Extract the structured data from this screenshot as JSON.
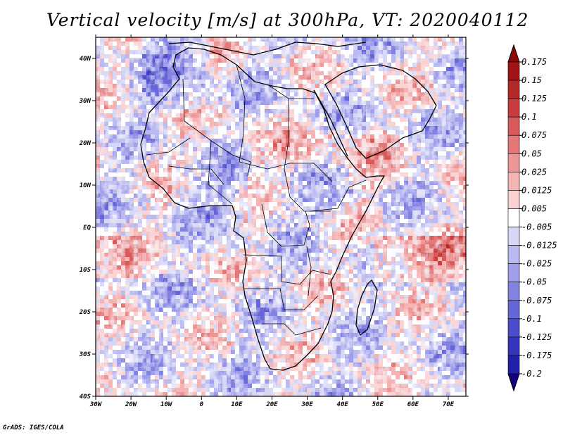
{
  "chart_data": {
    "type": "heatmap",
    "title": "Vertical velocity [m/s] at 300hPa, VT: 2020040112",
    "xlabel": "",
    "ylabel": "",
    "xlim": [
      -30,
      75
    ],
    "ylim": [
      -40,
      45
    ],
    "x_ticks": [
      {
        "value": -30,
        "label": "30W"
      },
      {
        "value": -20,
        "label": "20W"
      },
      {
        "value": -10,
        "label": "10W"
      },
      {
        "value": 0,
        "label": "0"
      },
      {
        "value": 10,
        "label": "10E"
      },
      {
        "value": 20,
        "label": "20E"
      },
      {
        "value": 30,
        "label": "30E"
      },
      {
        "value": 40,
        "label": "40E"
      },
      {
        "value": 50,
        "label": "50E"
      },
      {
        "value": 60,
        "label": "60E"
      },
      {
        "value": 70,
        "label": "70E"
      }
    ],
    "y_ticks": [
      {
        "value": -40,
        "label": "40S"
      },
      {
        "value": -30,
        "label": "30S"
      },
      {
        "value": -20,
        "label": "20S"
      },
      {
        "value": -10,
        "label": "10S"
      },
      {
        "value": 0,
        "label": "EQ"
      },
      {
        "value": 10,
        "label": "10N"
      },
      {
        "value": 20,
        "label": "20N"
      },
      {
        "value": 30,
        "label": "30N"
      },
      {
        "value": 40,
        "label": "40N"
      }
    ],
    "colorbar": {
      "levels": [
        {
          "label": "0.175",
          "color": "#a01414"
        },
        {
          "label": "0.15",
          "color": "#b42828"
        },
        {
          "label": "0.125",
          "color": "#c83c3c"
        },
        {
          "label": "0.1",
          "color": "#d85a5a"
        },
        {
          "label": "0.075",
          "color": "#e47878"
        },
        {
          "label": "0.05",
          "color": "#ee9696"
        },
        {
          "label": "0.025",
          "color": "#f5b4b4"
        },
        {
          "label": "0.0125",
          "color": "#fad2d2"
        },
        {
          "label": "0.005",
          "color": "#ffffff"
        },
        {
          "label": "-0.005",
          "color": "#d6d6f5"
        },
        {
          "label": "-0.0125",
          "color": "#babaf0"
        },
        {
          "label": "-0.025",
          "color": "#9e9eea"
        },
        {
          "label": "-0.05",
          "color": "#8282e2"
        },
        {
          "label": "-0.075",
          "color": "#6666d8"
        },
        {
          "label": "-0.1",
          "color": "#4c4ccc"
        },
        {
          "label": "-0.125",
          "color": "#3434bc"
        },
        {
          "label": "-0.175",
          "color": "#2020aa"
        },
        {
          "label": "-0.2",
          "color": "#1a1496"
        }
      ],
      "top_arrow_color": "#8c0a0a",
      "bottom_arrow_color": "#14007a"
    }
  },
  "footer": "GrADS: IGES/COLA"
}
